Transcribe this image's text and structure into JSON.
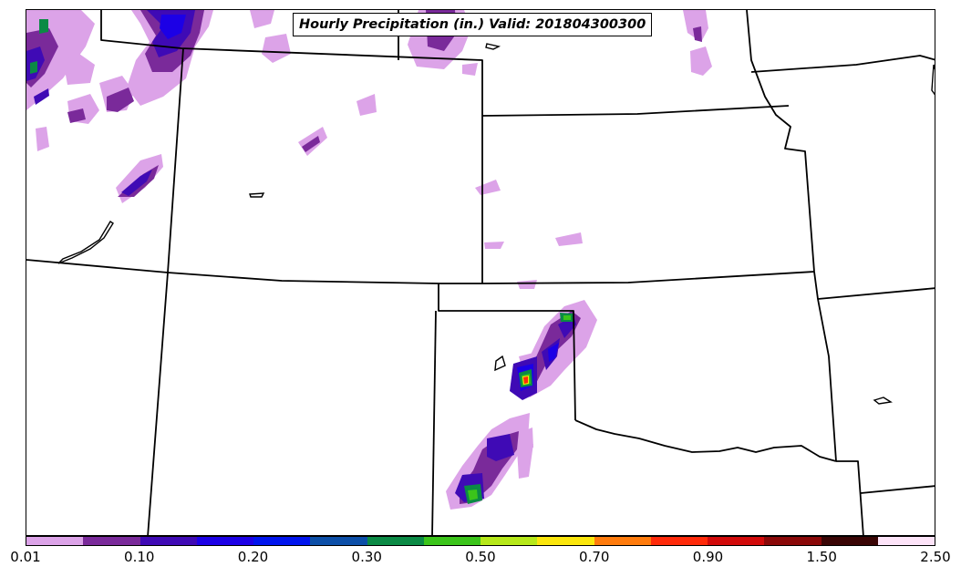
{
  "title": "Hourly Precipitation (in.) Valid: 201804300300",
  "colorbar": {
    "colors": [
      "#dca3e8",
      "#7a2a9a",
      "#3f0ab5",
      "#1c00e6",
      "#0014ee",
      "#0c4fa8",
      "#0b8a45",
      "#3bc41a",
      "#b6e81a",
      "#fbe60c",
      "#ff7b0c",
      "#ff2a0a",
      "#d20a0a",
      "#8a0808",
      "#3a0505",
      "#fde3f8"
    ],
    "tick_labels": [
      "0.01",
      "0.10",
      "0.20",
      "0.30",
      "0.50",
      "0.70",
      "0.90",
      "1.50",
      "2.50"
    ]
  },
  "precip_colors": {
    "light": "#dca3e8",
    "purple": "#7a2a9a",
    "indigo": "#3f0ab5",
    "blue": "#1c00e6",
    "green": "#0b8a45",
    "lime": "#3bc41a",
    "yellow": "#fbe60c",
    "red": "#ff2a0a"
  }
}
